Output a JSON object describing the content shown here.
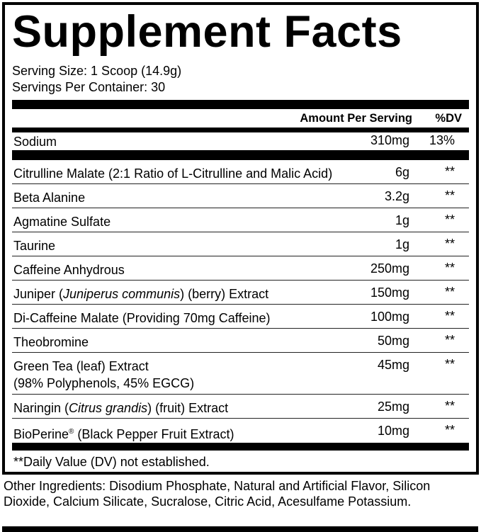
{
  "title": "Supplement Facts",
  "serving_size": "Serving Size: 1 Scoop (14.9g)",
  "servings_per_container": "Servings Per Container: 30",
  "header": {
    "amount": "Amount Per Serving",
    "dv": "%DV"
  },
  "sodium": {
    "name": "Sodium",
    "amount": "310mg",
    "dv": "13%"
  },
  "ingredients": [
    {
      "name": "Citrulline Malate (2:1 Ratio of L-Citrulline and Malic Acid)",
      "amount": "6g",
      "dv": "**"
    },
    {
      "name": "Beta Alanine",
      "amount": "3.2g",
      "dv": "**"
    },
    {
      "name": "Agmatine Sulfate",
      "amount": "1g",
      "dv": "**"
    },
    {
      "name": "Taurine",
      "amount": "1g",
      "dv": "**"
    },
    {
      "name": "Caffeine Anhydrous",
      "amount": "250mg",
      "dv": "**"
    },
    {
      "name_pre": "Juniper (",
      "name_italic": "Juniperus communis",
      "name_post": ") (berry) Extract",
      "amount": "150mg",
      "dv": "**"
    },
    {
      "name": "Di-Caffeine Malate (Providing 70mg Caffeine)",
      "amount": "100mg",
      "dv": "**"
    },
    {
      "name": "Theobromine",
      "amount": "50mg",
      "dv": "**"
    },
    {
      "name": "Green Tea (leaf) Extract",
      "name_line2": "(98% Polyphenols, 45% EGCG)",
      "amount": "45mg",
      "dv": "**"
    },
    {
      "name_pre": "Naringin (",
      "name_italic": "Citrus grandis",
      "name_post": ") (fruit) Extract",
      "amount": "25mg",
      "dv": "**"
    },
    {
      "name_pre": "BioPerine",
      "name_sup": "®",
      "name_post": " (Black Pepper Fruit Extract)",
      "amount": "10mg",
      "dv": "**"
    }
  ],
  "footnote": "**Daily Value (DV) not established.",
  "other_ingredients": "Other Ingredients: Disodium Phosphate, Natural and Artificial Flavor, Silicon Dioxide, Calcium Silicate, Sucralose, Citric Acid, Acesulfame Potassium."
}
